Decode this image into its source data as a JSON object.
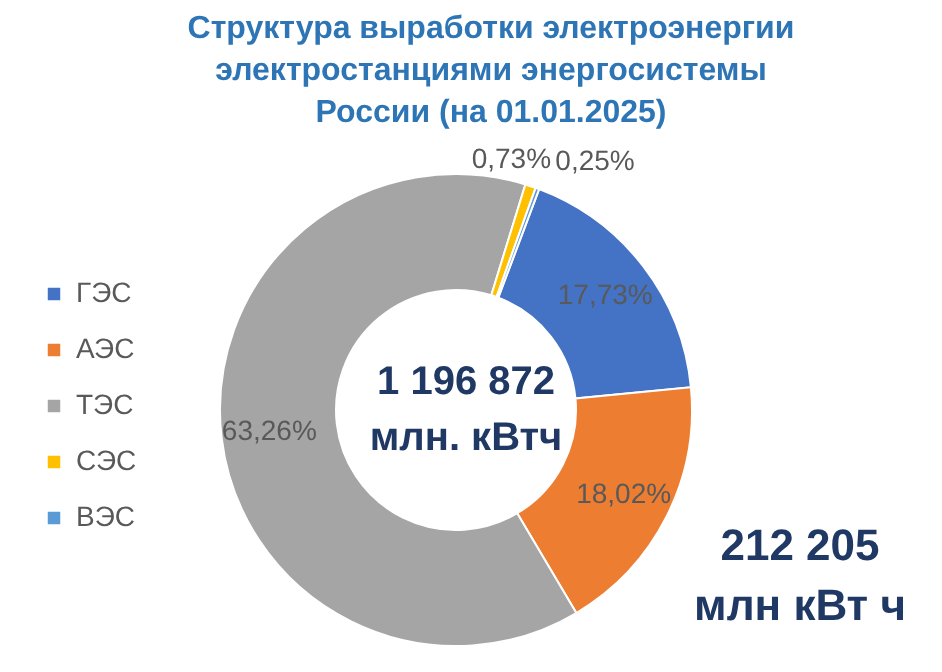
{
  "chart_data": {
    "type": "donut",
    "title": "Структура выработки электроэнергии\nэлектростанциями энергосистемы\nРоссии (на 01.01.2025)",
    "categories": [
      "ГЭС",
      "АЭС",
      "ТЭС",
      "СЭС",
      "ВЭС"
    ],
    "values": [
      17.73,
      18.02,
      63.26,
      0.73,
      0.25
    ],
    "colors": [
      "#4472c4",
      "#ed7d31",
      "#a5a5a5",
      "#ffc000",
      "#5b9bd5"
    ],
    "value_labels": [
      "17,73%",
      "18,02%",
      "63,26%",
      "0,73%",
      "0,25%"
    ],
    "legend": "left",
    "annotations": [
      "1 196 872\nмлн. кВтч",
      "212 205\nмлн кВт ч"
    ]
  }
}
